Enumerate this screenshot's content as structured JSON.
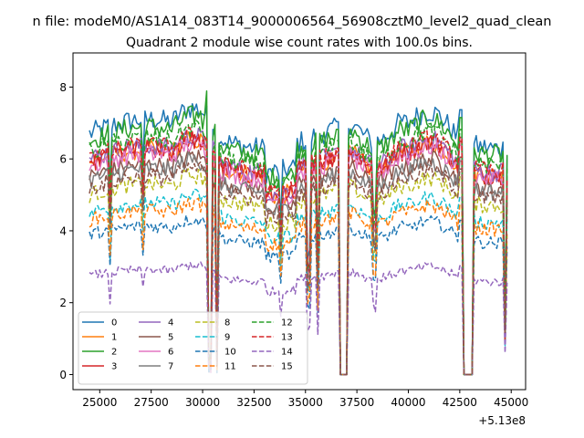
{
  "chart_data": {
    "type": "line",
    "suptitle": "n file: modeM0/AS1A14_083T14_9000006564_56908cztM0_level2_quad_clean",
    "title": "Quadrant 2 module wise count rates with 100.0s bins.",
    "xlabel": "",
    "ylabel": "",
    "x_offset_label": "+5.13e8",
    "xlim": [
      23700,
      45700
    ],
    "ylim": [
      -0.42,
      8.95
    ],
    "x_ticks": [
      25000,
      27500,
      30000,
      32500,
      35000,
      37500,
      40000,
      42500,
      45000
    ],
    "x_tick_labels": [
      "25000",
      "27500",
      "30000",
      "32500",
      "35000",
      "37500",
      "40000",
      "42500",
      "45000"
    ],
    "y_ticks": [
      0,
      2,
      4,
      6,
      8
    ],
    "y_tick_labels": [
      "0",
      "2",
      "4",
      "6",
      "8"
    ],
    "legend_position": "lower-left",
    "gap_segments": [
      {
        "start": 36700,
        "end": 37000,
        "value": 0
      },
      {
        "start": 42700,
        "end": 43100,
        "value": 0
      }
    ],
    "bin_seconds": 100,
    "x_start": 24500,
    "x_end": 44800,
    "series": [
      {
        "name": "0",
        "color": "#1f77b4",
        "dash": "solid",
        "base": 6.7
      },
      {
        "name": "1",
        "color": "#ff7f0e",
        "dash": "solid",
        "base": 5.9
      },
      {
        "name": "2",
        "color": "#2ca02c",
        "dash": "solid",
        "base": 6.5
      },
      {
        "name": "3",
        "color": "#d62728",
        "dash": "solid",
        "base": 5.9
      },
      {
        "name": "4",
        "color": "#9467bd",
        "dash": "solid",
        "base": 6.0
      },
      {
        "name": "5",
        "color": "#8c564b",
        "dash": "solid",
        "base": 5.5
      },
      {
        "name": "6",
        "color": "#e377c2",
        "dash": "solid",
        "base": 5.8
      },
      {
        "name": "7",
        "color": "#7f7f7f",
        "dash": "solid",
        "base": 5.4
      },
      {
        "name": "8",
        "color": "#bcbd22",
        "dash": "dashed",
        "base": 5.0
      },
      {
        "name": "9",
        "color": "#17becf",
        "dash": "dashed",
        "base": 4.5
      },
      {
        "name": "10",
        "color": "#1f77b4",
        "dash": "dashed",
        "base": 3.9
      },
      {
        "name": "11",
        "color": "#ff7f0e",
        "dash": "dashed",
        "base": 4.3
      },
      {
        "name": "12",
        "color": "#2ca02c",
        "dash": "dashed",
        "base": 6.2
      },
      {
        "name": "13",
        "color": "#d62728",
        "dash": "dashed",
        "base": 6.0
      },
      {
        "name": "14",
        "color": "#9467bd",
        "dash": "dashed",
        "base": 2.75
      },
      {
        "name": "15",
        "color": "#8c564b",
        "dash": "dashed",
        "base": 5.2
      }
    ]
  }
}
